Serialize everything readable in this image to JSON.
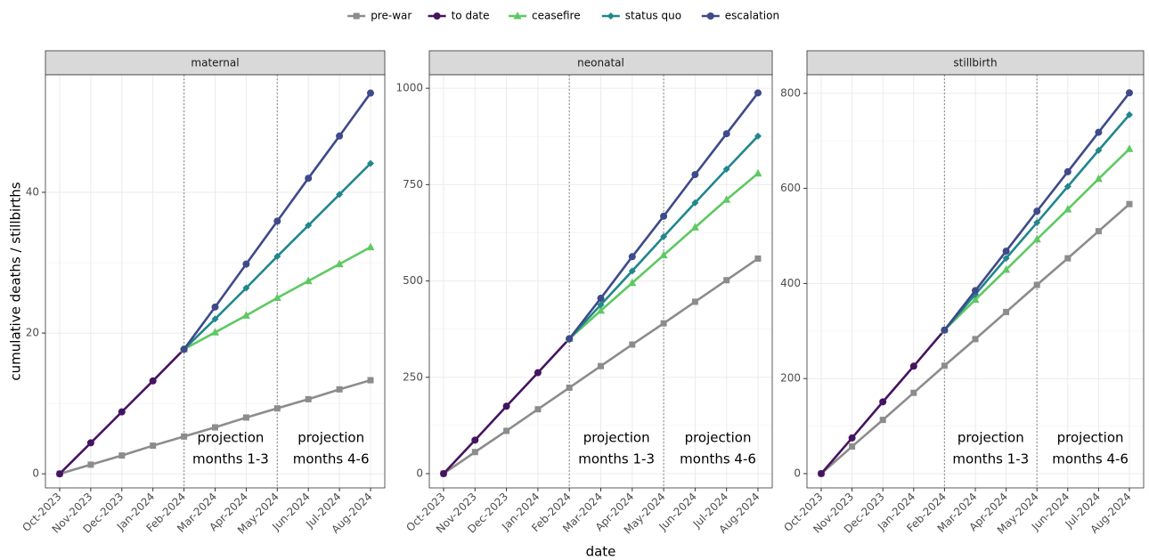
{
  "chart_data": [
    {
      "type": "line",
      "title": "maternal",
      "ylabel": "cumulative deaths / stillbirths",
      "categories": [
        "Oct-2023",
        "Nov-2023",
        "Dec-2023",
        "Jan-2024",
        "Feb-2024",
        "Mar-2024",
        "Apr-2024",
        "May-2024",
        "Jun-2024",
        "Jul-2024",
        "Aug-2024"
      ],
      "ylim": [
        -2.0,
        56.7
      ],
      "yticks": [
        0,
        20,
        40
      ],
      "grid": true,
      "vlines": [
        "Feb-2024",
        "May-2024"
      ],
      "annotations": [
        [
          "projection",
          "months 1-3"
        ],
        [
          "projection",
          "months 4-6"
        ]
      ],
      "series": [
        {
          "name": "pre-war",
          "color": "#8c8c8c",
          "marker": "square",
          "values": [
            0,
            1.3,
            2.6,
            4.0,
            5.3,
            6.6,
            8.0,
            9.3,
            10.6,
            12.0,
            13.3
          ]
        },
        {
          "name": "to date",
          "color": "#45145f",
          "marker": "circle",
          "values": [
            0,
            4.4,
            8.8,
            13.2,
            17.7,
            null,
            null,
            null,
            null,
            null,
            null
          ]
        },
        {
          "name": "ceasefire",
          "color": "#5ec962",
          "marker": "triangle",
          "values": [
            null,
            null,
            null,
            null,
            17.7,
            20.1,
            22.5,
            25.0,
            27.4,
            29.8,
            32.2
          ]
        },
        {
          "name": "status quo",
          "color": "#21878c",
          "marker": "diamond",
          "values": [
            null,
            null,
            null,
            null,
            17.7,
            22.0,
            26.4,
            30.9,
            35.3,
            39.7,
            44.1
          ]
        },
        {
          "name": "escalation",
          "color": "#3e4a89",
          "marker": "circle",
          "values": [
            null,
            null,
            null,
            null,
            17.7,
            23.7,
            29.8,
            35.9,
            42.0,
            48.0,
            54.1
          ]
        }
      ]
    },
    {
      "type": "line",
      "title": "neonatal",
      "xlabel": "date",
      "categories": [
        "Oct-2023",
        "Nov-2023",
        "Dec-2023",
        "Jan-2024",
        "Feb-2024",
        "Mar-2024",
        "Apr-2024",
        "May-2024",
        "Jun-2024",
        "Jul-2024",
        "Aug-2024"
      ],
      "ylim": [
        -37,
        1035
      ],
      "yticks": [
        0,
        250,
        500,
        750,
        1000
      ],
      "grid": true,
      "vlines": [
        "Feb-2024",
        "May-2024"
      ],
      "annotations": [
        [
          "projection",
          "months 1-3"
        ],
        [
          "projection",
          "months 4-6"
        ]
      ],
      "series": [
        {
          "name": "pre-war",
          "color": "#8c8c8c",
          "marker": "square",
          "values": [
            0,
            56,
            111,
            167,
            223,
            279,
            335,
            390,
            446,
            502,
            558
          ]
        },
        {
          "name": "to date",
          "color": "#45145f",
          "marker": "circle",
          "values": [
            0,
            87,
            175,
            262,
            350,
            null,
            null,
            null,
            null,
            null,
            null
          ]
        },
        {
          "name": "ceasefire",
          "color": "#5ec962",
          "marker": "triangle",
          "values": [
            null,
            null,
            null,
            null,
            350,
            423,
            495,
            567,
            639,
            711,
            779
          ]
        },
        {
          "name": "status quo",
          "color": "#21878c",
          "marker": "diamond",
          "values": [
            null,
            null,
            null,
            null,
            350,
            438,
            526,
            615,
            703,
            790,
            876
          ]
        },
        {
          "name": "escalation",
          "color": "#3e4a89",
          "marker": "circle",
          "values": [
            null,
            null,
            null,
            null,
            350,
            455,
            563,
            668,
            776,
            882,
            988
          ]
        }
      ]
    },
    {
      "type": "line",
      "title": "stillbirth",
      "categories": [
        "Oct-2023",
        "Nov-2023",
        "Dec-2023",
        "Jan-2024",
        "Feb-2024",
        "Mar-2024",
        "Apr-2024",
        "May-2024",
        "Jun-2024",
        "Jul-2024",
        "Aug-2024"
      ],
      "ylim": [
        -30,
        839
      ],
      "yticks": [
        0,
        200,
        400,
        600,
        800
      ],
      "grid": true,
      "vlines": [
        "Feb-2024",
        "May-2024"
      ],
      "annotations": [
        [
          "projection",
          "months 1-3"
        ],
        [
          "projection",
          "months 4-6"
        ]
      ],
      "series": [
        {
          "name": "pre-war",
          "color": "#8c8c8c",
          "marker": "square",
          "values": [
            0,
            57,
            113,
            170,
            227,
            283,
            340,
            397,
            453,
            510,
            567
          ]
        },
        {
          "name": "to date",
          "color": "#45145f",
          "marker": "circle",
          "values": [
            0,
            75,
            151,
            226,
            302,
            null,
            null,
            null,
            null,
            null,
            null
          ]
        },
        {
          "name": "ceasefire",
          "color": "#5ec962",
          "marker": "triangle",
          "values": [
            null,
            null,
            null,
            null,
            302,
            366,
            429,
            493,
            556,
            620,
            683
          ]
        },
        {
          "name": "status quo",
          "color": "#21878c",
          "marker": "diamond",
          "values": [
            null,
            null,
            null,
            null,
            302,
            377,
            453,
            528,
            604,
            680,
            755
          ]
        },
        {
          "name": "escalation",
          "color": "#3e4a89",
          "marker": "circle",
          "values": [
            null,
            null,
            null,
            null,
            302,
            385,
            468,
            552,
            635,
            718,
            801
          ]
        }
      ]
    }
  ]
}
